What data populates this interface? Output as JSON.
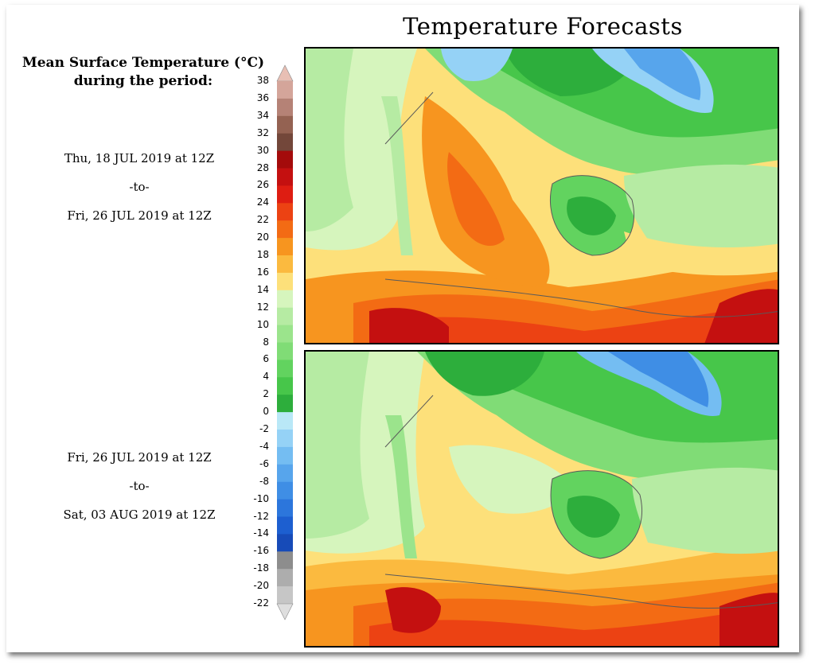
{
  "title": "Temperature Forecasts",
  "legend": {
    "title_line1": "Mean Surface Temperature (°C)",
    "title_line2": "during the period:",
    "ticks": [
      "38",
      "36",
      "34",
      "32",
      "30",
      "28",
      "26",
      "24",
      "22",
      "20",
      "18",
      "16",
      "14",
      "12",
      "10",
      "8",
      "6",
      "4",
      "2",
      "0",
      "-2",
      "-4",
      "-6",
      "-8",
      "-10",
      "-12",
      "-14",
      "-16",
      "-18",
      "-20",
      "-22"
    ],
    "colors": [
      "#e8bfb4",
      "#d4a59a",
      "#b58276",
      "#946252",
      "#73473a",
      "#a40b0b",
      "#c41010",
      "#de1d12",
      "#ec4213",
      "#f36b14",
      "#f7951f",
      "#fbba3f",
      "#fde07a",
      "#d6f5bd",
      "#b6eba3",
      "#9be48c",
      "#80dc76",
      "#62d35f",
      "#47c64a",
      "#2dae3c",
      "#b9e8f7",
      "#95d2f6",
      "#74bdf2",
      "#57a5ec",
      "#3f8ee5",
      "#2c76dc",
      "#1d5fd0",
      "#174bb8",
      "#8d8d8d",
      "#adadad",
      "#c6c6c6",
      "#dedede"
    ]
  },
  "periods": [
    {
      "start": "Thu, 18 JUL 2019 at 12Z",
      "sep": "-to-",
      "end": "Fri, 26 JUL 2019 at 12Z"
    },
    {
      "start": "Fri, 26 JUL 2019 at 12Z",
      "sep": "-to-",
      "end": "Sat, 03 AUG 2019 at 12Z"
    }
  ]
}
